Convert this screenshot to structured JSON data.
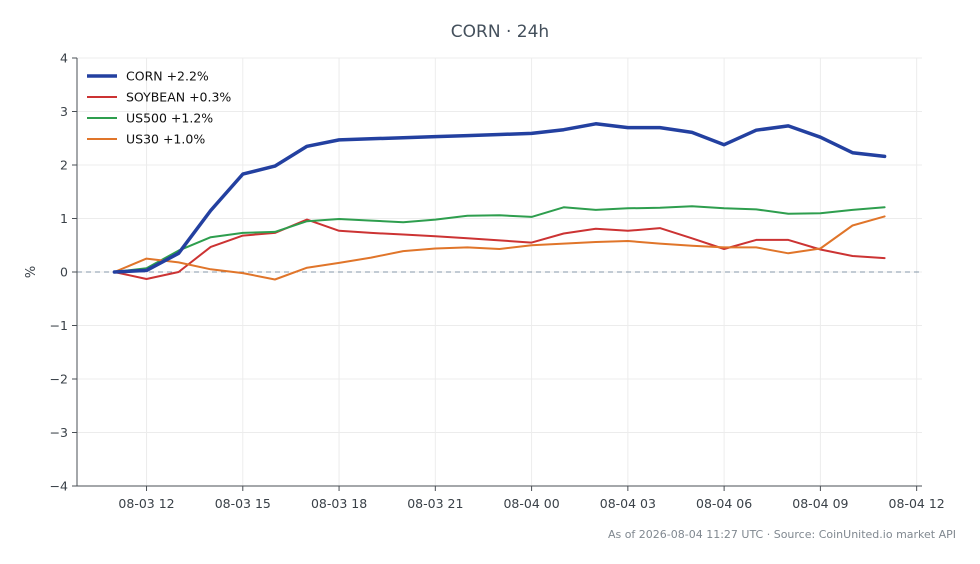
{
  "chart_data": {
    "type": "line",
    "title": "CORN · 24h",
    "ylabel": "%",
    "xlabel": "",
    "ylim": [
      -4,
      4
    ],
    "yticks": [
      -4,
      -3,
      -2,
      -1,
      0,
      1,
      2,
      3,
      4
    ],
    "ytick_labels": [
      "−4",
      "−3",
      "−2",
      "−1",
      "0",
      "1",
      "2",
      "3",
      "4"
    ],
    "xlim": [
      "08-03 09:50",
      "08-04 12:10"
    ],
    "xtick_labels": [
      "08-03 12",
      "08-03 15",
      "08-03 18",
      "08-03 21",
      "08-04 00",
      "08-04 03",
      "08-04 06",
      "08-04 09",
      "08-04 12"
    ],
    "grid": true,
    "legend_position": "top-left",
    "x": [
      "08-03 11:00",
      "08-03 12:00",
      "08-03 13:00",
      "08-03 14:00",
      "08-03 15:00",
      "08-03 16:00",
      "08-03 17:00",
      "08-03 18:00",
      "08-03 19:00",
      "08-03 20:00",
      "08-03 21:00",
      "08-03 22:00",
      "08-03 23:00",
      "08-04 00:00",
      "08-04 01:00",
      "08-04 02:00",
      "08-04 03:00",
      "08-04 04:00",
      "08-04 05:00",
      "08-04 06:00",
      "08-04 07:00",
      "08-04 08:00",
      "08-04 09:00",
      "08-04 10:00",
      "08-04 11:00"
    ],
    "series": [
      {
        "name": "CORN +2.2%",
        "color": "#2340a0",
        "width": 3.5,
        "values": [
          0.0,
          0.03,
          0.35,
          1.15,
          1.83,
          1.98,
          2.35,
          2.47,
          2.49,
          2.51,
          2.53,
          2.55,
          2.57,
          2.59,
          2.66,
          2.77,
          2.7,
          2.7,
          2.61,
          2.38,
          2.65,
          2.73,
          2.52,
          2.23,
          2.16
        ]
      },
      {
        "name": "SOYBEAN +0.3%",
        "color": "#cc3333",
        "width": 2,
        "values": [
          0.0,
          -0.13,
          0.0,
          0.47,
          0.68,
          0.73,
          0.98,
          0.77,
          0.73,
          0.7,
          0.67,
          0.63,
          0.59,
          0.55,
          0.72,
          0.81,
          0.77,
          0.82,
          0.63,
          0.43,
          0.6,
          0.6,
          0.42,
          0.3,
          0.26
        ]
      },
      {
        "name": "US500 +1.2%",
        "color": "#2e9e4e",
        "width": 2,
        "values": [
          0.0,
          0.07,
          0.4,
          0.65,
          0.73,
          0.75,
          0.95,
          0.99,
          0.96,
          0.93,
          0.98,
          1.05,
          1.06,
          1.03,
          1.21,
          1.16,
          1.19,
          1.2,
          1.23,
          1.19,
          1.17,
          1.09,
          1.1,
          1.16,
          1.21
        ]
      },
      {
        "name": "US30 +1.0%",
        "color": "#e0752a",
        "width": 2,
        "values": [
          0.0,
          0.25,
          0.18,
          0.05,
          -0.02,
          -0.14,
          0.08,
          0.17,
          0.27,
          0.39,
          0.44,
          0.46,
          0.43,
          0.5,
          0.53,
          0.56,
          0.58,
          0.53,
          0.49,
          0.46,
          0.46,
          0.35,
          0.44,
          0.87,
          1.04
        ]
      }
    ]
  },
  "footer": "As of 2026-08-04 11:27 UTC · Source: CoinUnited.io market API"
}
